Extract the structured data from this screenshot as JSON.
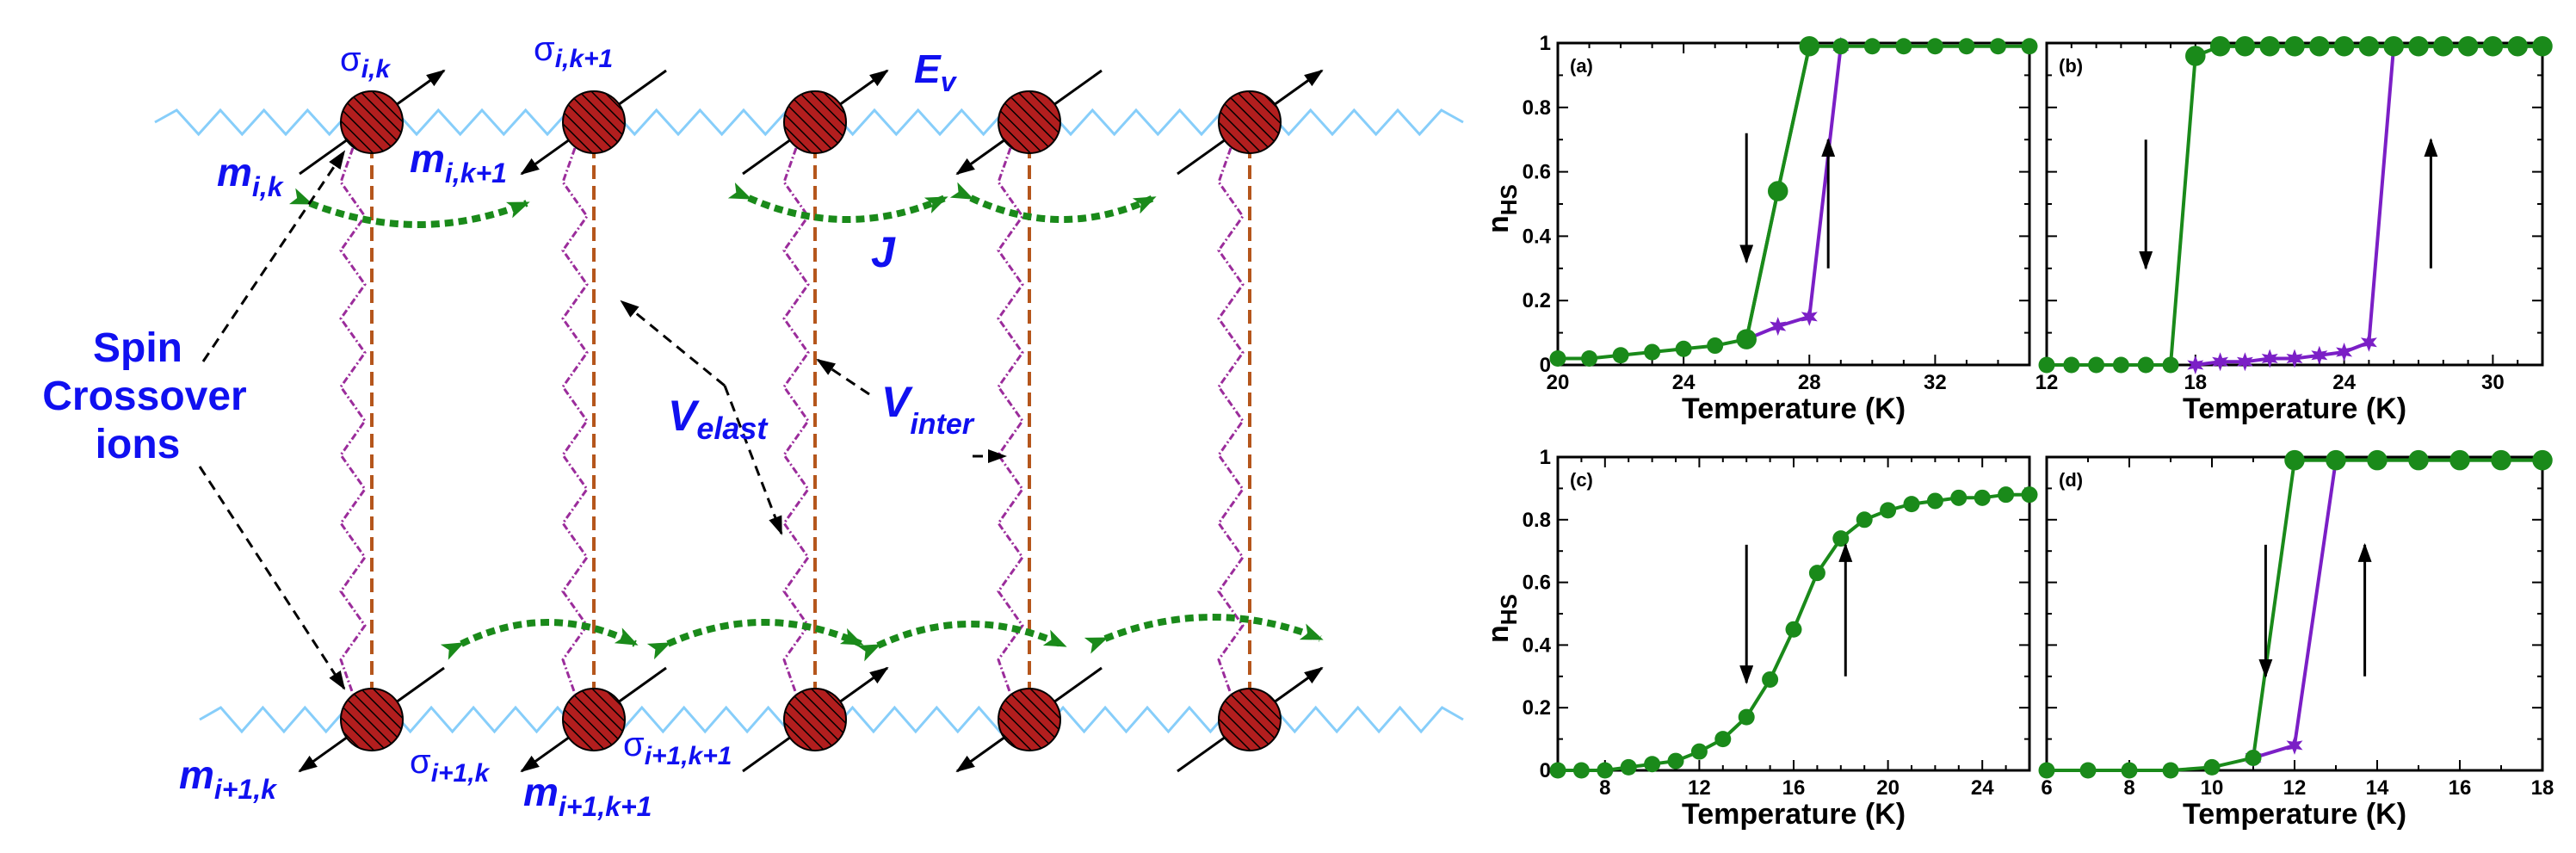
{
  "schematic": {
    "labels": {
      "sigma_ik": {
        "base": "σ",
        "sub": "i,k"
      },
      "sigma_ik1": {
        "base": "σ",
        "sub": "i,k+1"
      },
      "ev": {
        "base": "E",
        "sub": "v"
      },
      "m_ik": {
        "base": "m",
        "sub": "i,k"
      },
      "m_ik1": {
        "base": "m",
        "sub": "i,k+1"
      },
      "j": "J",
      "spin_line1": "Spin",
      "spin_line2": "Crossover",
      "spin_line3": "ions",
      "velast": {
        "base": "V",
        "sub": "elast"
      },
      "vinter": {
        "base": "V",
        "sub": "inter"
      },
      "m_i1k": {
        "base": "m",
        "sub": "i+1,k"
      },
      "sigma_i1k": {
        "base": "σ",
        "sub": "i+1,k"
      },
      "sigma_i1k1": {
        "base": "σ",
        "sub": "i+1,k+1"
      },
      "m_i1k1": {
        "base": "m",
        "sub": "i+1,k+1"
      }
    },
    "colors": {
      "spring_horizontal": "#87cefa",
      "ion_fill": "#b21e1e",
      "vertical_dashed": "#b5561c",
      "vertical_spring": "#9b2c9b",
      "curved_arrow": "#1a8a1a",
      "label_blue": "#1010f0"
    }
  },
  "chart_data": [
    {
      "type": "line",
      "panel": "(a)",
      "xlabel": "Temperature (K)",
      "ylabel": "n_HS",
      "xlim": [
        20,
        35
      ],
      "ylim": [
        0,
        1
      ],
      "xticks": [
        20,
        24,
        28,
        32
      ],
      "yticks": [
        0,
        0.2,
        0.4,
        0.6,
        0.8,
        1
      ],
      "ytick_labels": [
        "0",
        "0.2",
        "0.4",
        "0.6",
        "0.8",
        "1"
      ],
      "series": [
        {
          "color": "#7b1fc6",
          "marker": "star",
          "x": [
            26,
            27,
            28,
            29
          ],
          "y": [
            0.08,
            0.12,
            0.15,
            0.99
          ]
        },
        {
          "color": "#1a8a1a",
          "marker": "open-circle",
          "x": [
            26,
            27,
            28
          ],
          "y": [
            0.08,
            0.54,
            0.99
          ]
        },
        {
          "color": "#1a8a1a",
          "marker": "filled-circle",
          "x": [
            20,
            21,
            22,
            23,
            24,
            25,
            26,
            27,
            28,
            29,
            30,
            31,
            32,
            33,
            34,
            35
          ],
          "y": [
            0.02,
            0.02,
            0.03,
            0.04,
            0.05,
            0.06,
            0.08,
            0.54,
            0.99,
            0.99,
            0.99,
            0.99,
            0.99,
            0.99,
            0.99,
            0.99
          ]
        }
      ],
      "arrows": [
        {
          "x": 26,
          "dir": "down",
          "y0": 0.72,
          "y1": 0.32
        },
        {
          "x": 28.6,
          "dir": "up",
          "y0": 0.3,
          "y1": 0.7
        }
      ]
    },
    {
      "type": "line",
      "panel": "(b)",
      "xlabel": "Temperature (K)",
      "ylabel": "",
      "xlim": [
        12,
        32
      ],
      "ylim": [
        0,
        1
      ],
      "xticks": [
        12,
        18,
        24,
        30
      ],
      "yticks": [
        0,
        0.2,
        0.4,
        0.6,
        0.8,
        1
      ],
      "ytick_labels": [],
      "series": [
        {
          "color": "#7b1fc6",
          "marker": "star",
          "x": [
            18,
            19,
            20,
            21,
            22,
            23,
            24,
            25,
            26
          ],
          "y": [
            0.0,
            0.01,
            0.01,
            0.02,
            0.02,
            0.03,
            0.04,
            0.07,
            0.99
          ]
        },
        {
          "color": "#1a8a1a",
          "marker": "open-circle",
          "x": [
            18,
            19,
            20,
            21,
            22,
            23,
            24,
            25,
            26,
            27,
            28,
            29,
            30,
            31,
            32
          ],
          "y": [
            0.96,
            0.99,
            0.99,
            0.99,
            0.99,
            0.99,
            0.99,
            0.99,
            0.99,
            0.99,
            0.99,
            0.99,
            0.99,
            0.99,
            0.99
          ]
        },
        {
          "color": "#1a8a1a",
          "marker": "filled-circle",
          "x": [
            12,
            13,
            14,
            15,
            16,
            17,
            18,
            19,
            20,
            21,
            22,
            23,
            24,
            25,
            26,
            27,
            28,
            29,
            30,
            31,
            32
          ],
          "y": [
            0.0,
            0.0,
            0.0,
            0.0,
            0.0,
            0.0,
            0.96,
            0.99,
            0.99,
            0.99,
            0.99,
            0.99,
            0.99,
            0.99,
            0.99,
            0.99,
            0.99,
            0.99,
            0.99,
            0.99,
            0.99
          ]
        }
      ],
      "arrows": [
        {
          "x": 16,
          "dir": "down",
          "y0": 0.7,
          "y1": 0.3
        },
        {
          "x": 27.5,
          "dir": "up",
          "y0": 0.3,
          "y1": 0.7
        }
      ]
    },
    {
      "type": "line",
      "panel": "(c)",
      "xlabel": "Temperature (K)",
      "ylabel": "n_HS",
      "xlim": [
        6,
        26
      ],
      "ylim": [
        0,
        1
      ],
      "xticks": [
        8,
        12,
        16,
        20,
        24
      ],
      "yticks": [
        0,
        0.2,
        0.4,
        0.6,
        0.8,
        1
      ],
      "ytick_labels": [
        "0",
        "0.2",
        "0.4",
        "0.6",
        "0.8",
        "1"
      ],
      "series": [
        {
          "color": "#1a8a1a",
          "marker": "filled-circle",
          "x": [
            6,
            7,
            8,
            9,
            10,
            11,
            12,
            13,
            14,
            15,
            16,
            17,
            18,
            19,
            20,
            21,
            22,
            23,
            24,
            25,
            26
          ],
          "y": [
            0.0,
            0.0,
            0.0,
            0.01,
            0.02,
            0.03,
            0.06,
            0.1,
            0.17,
            0.29,
            0.45,
            0.63,
            0.74,
            0.8,
            0.83,
            0.85,
            0.86,
            0.87,
            0.87,
            0.88,
            0.88
          ]
        }
      ],
      "arrows": [
        {
          "x": 14,
          "dir": "down",
          "y0": 0.72,
          "y1": 0.28
        },
        {
          "x": 18.2,
          "dir": "up",
          "y0": 0.3,
          "y1": 0.72
        }
      ]
    },
    {
      "type": "line",
      "panel": "(d)",
      "xlabel": "Temperature (K)",
      "ylabel": "",
      "xlim": [
        6,
        18
      ],
      "ylim": [
        0,
        1
      ],
      "xticks": [
        6,
        8,
        10,
        12,
        14,
        16,
        18
      ],
      "yticks": [
        0,
        0.2,
        0.4,
        0.6,
        0.8,
        1
      ],
      "ytick_labels": [],
      "series": [
        {
          "color": "#7b1fc6",
          "marker": "star",
          "x": [
            11,
            12,
            13
          ],
          "y": [
            0.04,
            0.08,
            0.99
          ]
        },
        {
          "color": "#1a8a1a",
          "marker": "open-circle",
          "x": [
            12,
            13,
            14,
            15,
            16,
            17,
            18
          ],
          "y": [
            0.99,
            0.99,
            0.99,
            0.99,
            0.99,
            0.99,
            0.99
          ]
        },
        {
          "color": "#1a8a1a",
          "marker": "filled-circle",
          "x": [
            6,
            7,
            8,
            9,
            10,
            11,
            12,
            13,
            14,
            15,
            16,
            17,
            18
          ],
          "y": [
            0.0,
            0.0,
            0.0,
            0.0,
            0.01,
            0.04,
            0.99,
            0.99,
            0.99,
            0.99,
            0.99,
            0.99,
            0.99
          ]
        }
      ],
      "arrows": [
        {
          "x": 11.3,
          "dir": "down",
          "y0": 0.72,
          "y1": 0.3
        },
        {
          "x": 13.7,
          "dir": "up",
          "y0": 0.3,
          "y1": 0.72
        }
      ]
    }
  ]
}
